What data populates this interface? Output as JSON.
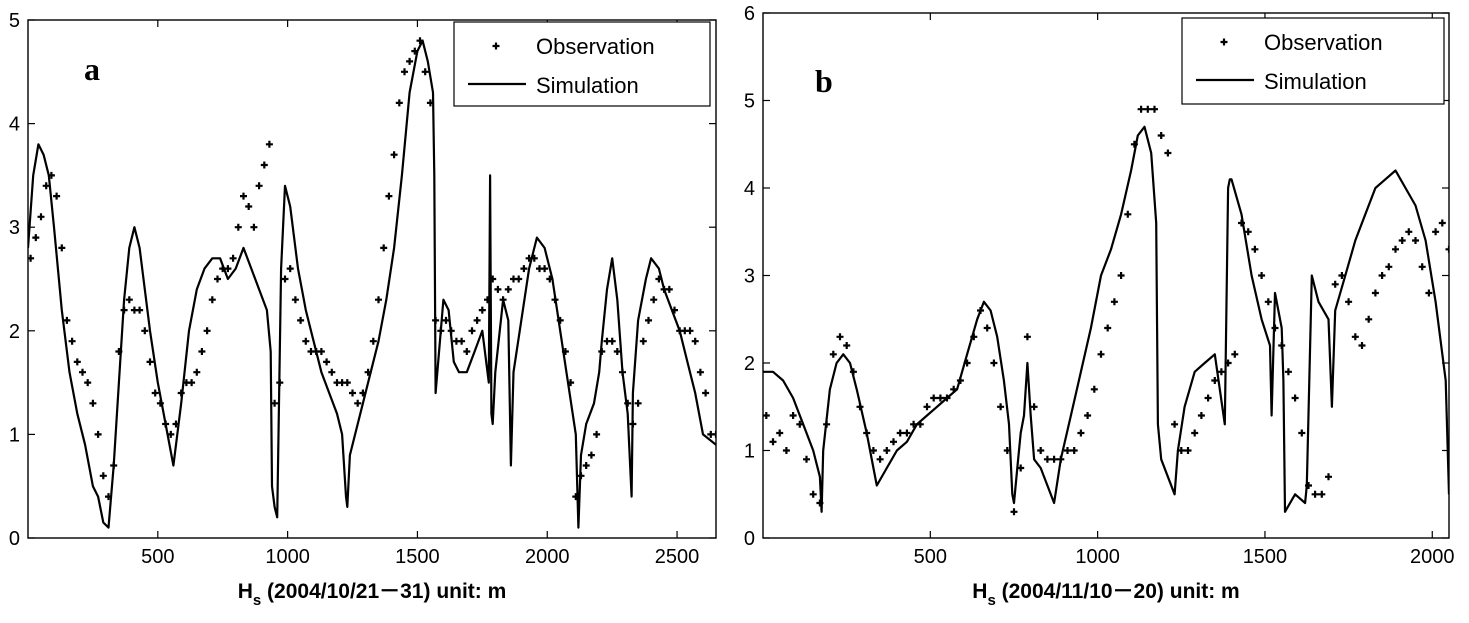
{
  "chart_data": [
    {
      "type": "line",
      "panel_label": "a",
      "xlabel_main": "H",
      "xlabel_sub": "s",
      "xlabel_rest": " (2004/10/21－31) unit: m",
      "xlim": [
        0,
        2650
      ],
      "ylim": [
        0,
        5
      ],
      "x_ticks": [
        "500",
        "1000",
        "1500",
        "2000",
        "2500"
      ],
      "y_ticks": [
        "0",
        "1",
        "2",
        "3",
        "4",
        "5"
      ],
      "legend": {
        "placement": "top-right",
        "entries": [
          "Observation",
          "Simulation"
        ]
      },
      "series": [
        {
          "name": "Observation",
          "style": "points",
          "x": [
            10,
            30,
            50,
            70,
            90,
            110,
            130,
            150,
            170,
            190,
            210,
            230,
            250,
            270,
            290,
            310,
            330,
            350,
            370,
            390,
            410,
            430,
            450,
            470,
            490,
            510,
            530,
            550,
            570,
            590,
            610,
            630,
            650,
            670,
            690,
            710,
            730,
            750,
            770,
            790,
            810,
            830,
            850,
            870,
            890,
            910,
            930,
            950,
            970,
            990,
            1010,
            1030,
            1050,
            1070,
            1090,
            1110,
            1130,
            1150,
            1170,
            1190,
            1210,
            1230,
            1250,
            1270,
            1290,
            1310,
            1330,
            1350,
            1370,
            1390,
            1410,
            1430,
            1450,
            1470,
            1490,
            1510,
            1530,
            1550,
            1570,
            1590,
            1610,
            1630,
            1650,
            1670,
            1690,
            1710,
            1730,
            1750,
            1770,
            1790,
            1810,
            1830,
            1850,
            1870,
            1890,
            1910,
            1930,
            1950,
            1970,
            1990,
            2010,
            2030,
            2050,
            2070,
            2090,
            2110,
            2130,
            2150,
            2170,
            2190,
            2210,
            2230,
            2250,
            2270,
            2290,
            2310,
            2330,
            2350,
            2370,
            2390,
            2410,
            2430,
            2450,
            2470,
            2490,
            2510,
            2530,
            2550,
            2570,
            2590,
            2610,
            2630,
            2650
          ],
          "y": [
            2.7,
            2.9,
            3.1,
            3.4,
            3.5,
            3.3,
            2.8,
            2.1,
            1.9,
            1.7,
            1.6,
            1.5,
            1.3,
            1.0,
            0.6,
            0.4,
            0.7,
            1.8,
            2.2,
            2.3,
            2.2,
            2.2,
            2.0,
            1.7,
            1.4,
            1.3,
            1.1,
            1.0,
            1.1,
            1.4,
            1.5,
            1.5,
            1.6,
            1.8,
            2.0,
            2.3,
            2.5,
            2.6,
            2.6,
            2.7,
            3.0,
            3.3,
            3.2,
            3.0,
            3.4,
            3.6,
            3.8,
            1.3,
            1.5,
            2.5,
            2.6,
            2.3,
            2.1,
            1.9,
            1.8,
            1.8,
            1.8,
            1.7,
            1.6,
            1.5,
            1.5,
            1.5,
            1.4,
            1.3,
            1.4,
            1.6,
            1.9,
            2.3,
            2.8,
            3.3,
            3.7,
            4.2,
            4.5,
            4.6,
            4.7,
            4.8,
            4.5,
            4.2,
            2.1,
            2.0,
            2.1,
            2.0,
            1.9,
            1.9,
            1.8,
            2.0,
            2.1,
            2.2,
            2.3,
            2.5,
            2.4,
            2.3,
            2.4,
            2.5,
            2.5,
            2.6,
            2.7,
            2.7,
            2.6,
            2.6,
            2.5,
            2.3,
            2.1,
            1.8,
            1.5,
            0.4,
            0.6,
            0.7,
            0.8,
            1.0,
            1.8,
            1.9,
            1.9,
            1.8,
            1.6,
            1.3,
            1.1,
            1.3,
            1.9,
            2.1,
            2.3,
            2.5,
            2.4,
            2.4,
            2.2,
            2.0,
            2.0,
            2.0,
            1.9,
            1.6,
            1.4,
            1.0,
            1.0
          ],
          "color": "#000000"
        },
        {
          "name": "Simulation",
          "style": "line",
          "x": [
            0,
            20,
            40,
            60,
            80,
            100,
            130,
            160,
            190,
            220,
            250,
            270,
            290,
            310,
            330,
            350,
            370,
            390,
            410,
            430,
            450,
            470,
            500,
            530,
            560,
            590,
            620,
            650,
            680,
            710,
            740,
            770,
            800,
            830,
            860,
            890,
            920,
            935,
            940,
            950,
            960,
            975,
            990,
            1010,
            1040,
            1070,
            1100,
            1130,
            1160,
            1190,
            1210,
            1225,
            1230,
            1240,
            1260,
            1290,
            1320,
            1350,
            1380,
            1410,
            1440,
            1470,
            1500,
            1520,
            1540,
            1560,
            1565,
            1570,
            1600,
            1620,
            1640,
            1660,
            1690,
            1720,
            1750,
            1775,
            1780,
            1785,
            1790,
            1800,
            1830,
            1850,
            1860,
            1870,
            1900,
            1930,
            1960,
            1990,
            2020,
            2050,
            2080,
            2110,
            2120,
            2130,
            2150,
            2180,
            2200,
            2210,
            2230,
            2250,
            2270,
            2290,
            2310,
            2325,
            2330,
            2350,
            2380,
            2400,
            2430,
            2450,
            2480,
            2510,
            2540,
            2570,
            2600,
            2650
          ],
          "y": [
            2.8,
            3.5,
            3.8,
            3.7,
            3.5,
            3.0,
            2.2,
            1.6,
            1.2,
            0.9,
            0.5,
            0.4,
            0.15,
            0.1,
            0.7,
            1.5,
            2.3,
            2.8,
            3.0,
            2.8,
            2.4,
            2.0,
            1.5,
            1.1,
            0.7,
            1.3,
            2.0,
            2.4,
            2.6,
            2.7,
            2.7,
            2.5,
            2.6,
            2.8,
            2.6,
            2.4,
            2.2,
            1.8,
            0.5,
            0.3,
            0.2,
            2.6,
            3.4,
            3.2,
            2.6,
            2.2,
            1.9,
            1.6,
            1.4,
            1.2,
            1.0,
            0.4,
            0.3,
            0.8,
            1.0,
            1.3,
            1.6,
            1.9,
            2.3,
            2.8,
            3.5,
            4.3,
            4.7,
            4.8,
            4.6,
            4.3,
            3.5,
            1.4,
            2.3,
            2.2,
            1.7,
            1.6,
            1.6,
            1.8,
            2.0,
            1.5,
            3.5,
            1.2,
            1.1,
            1.6,
            2.3,
            2.1,
            0.7,
            1.6,
            2.1,
            2.6,
            2.9,
            2.8,
            2.5,
            2.0,
            1.5,
            1.0,
            0.1,
            0.8,
            1.1,
            1.3,
            1.6,
            1.9,
            2.4,
            2.7,
            2.3,
            1.6,
            1.2,
            0.4,
            1.4,
            2.1,
            2.5,
            2.7,
            2.6,
            2.4,
            2.2,
            2.0,
            1.7,
            1.4,
            1.0,
            0.9
          ],
          "color": "#000000"
        }
      ]
    },
    {
      "type": "line",
      "panel_label": "b",
      "xlabel_main": "H",
      "xlabel_sub": "s",
      "xlabel_rest": " (2004/11/10－20) unit: m",
      "xlim": [
        0,
        2050
      ],
      "ylim": [
        0,
        6
      ],
      "x_ticks": [
        "500",
        "1000",
        "1500",
        "2000"
      ],
      "y_ticks": [
        "0",
        "1",
        "2",
        "3",
        "4",
        "5",
        "6"
      ],
      "legend": {
        "placement": "top-right",
        "entries": [
          "Observation",
          "Simulation"
        ]
      },
      "series": [
        {
          "name": "Observation",
          "style": "points",
          "x": [
            10,
            30,
            50,
            70,
            90,
            110,
            130,
            150,
            170,
            190,
            210,
            230,
            250,
            270,
            290,
            310,
            330,
            350,
            370,
            390,
            410,
            430,
            450,
            470,
            490,
            510,
            530,
            550,
            570,
            590,
            610,
            630,
            650,
            670,
            690,
            710,
            730,
            750,
            770,
            790,
            810,
            830,
            850,
            870,
            890,
            910,
            930,
            950,
            970,
            990,
            1010,
            1030,
            1050,
            1070,
            1090,
            1110,
            1130,
            1150,
            1170,
            1190,
            1210,
            1230,
            1250,
            1270,
            1290,
            1310,
            1330,
            1350,
            1370,
            1390,
            1410,
            1430,
            1450,
            1470,
            1490,
            1510,
            1530,
            1550,
            1570,
            1590,
            1610,
            1630,
            1650,
            1670,
            1690,
            1710,
            1730,
            1750,
            1770,
            1790,
            1810,
            1830,
            1850,
            1870,
            1890,
            1910,
            1930,
            1950,
            1970,
            1990,
            2010,
            2030,
            2050
          ],
          "y": [
            1.4,
            1.1,
            1.2,
            1.0,
            1.4,
            1.3,
            0.9,
            0.5,
            0.4,
            1.3,
            2.1,
            2.3,
            2.2,
            1.9,
            1.5,
            1.2,
            1.0,
            0.9,
            1.0,
            1.1,
            1.2,
            1.2,
            1.3,
            1.3,
            1.5,
            1.6,
            1.6,
            1.6,
            1.7,
            1.8,
            2.0,
            2.3,
            2.6,
            2.4,
            2.0,
            1.5,
            1.0,
            0.3,
            0.8,
            2.3,
            1.5,
            1.0,
            0.9,
            0.9,
            0.9,
            1.0,
            1.0,
            1.2,
            1.4,
            1.7,
            2.1,
            2.4,
            2.7,
            3.0,
            3.7,
            4.5,
            4.9,
            4.9,
            4.9,
            4.6,
            4.4,
            1.3,
            1.0,
            1.0,
            1.2,
            1.4,
            1.6,
            1.8,
            1.9,
            2.0,
            2.1,
            3.6,
            3.5,
            3.3,
            3.0,
            2.7,
            2.4,
            2.2,
            1.9,
            1.6,
            1.2,
            0.6,
            0.5,
            0.5,
            0.7,
            2.9,
            3.0,
            2.7,
            2.3,
            2.2,
            2.5,
            2.8,
            3.0,
            3.1,
            3.3,
            3.4,
            3.5,
            3.4,
            3.1,
            2.8,
            3.5,
            3.6,
            3.3
          ],
          "color": "#000000"
        },
        {
          "name": "Simulation",
          "style": "line",
          "x": [
            0,
            30,
            60,
            90,
            120,
            150,
            170,
            175,
            180,
            200,
            220,
            240,
            260,
            280,
            310,
            340,
            370,
            400,
            430,
            460,
            490,
            520,
            550,
            580,
            610,
            640,
            660,
            680,
            700,
            720,
            735,
            745,
            750,
            760,
            770,
            780,
            790,
            800,
            810,
            830,
            850,
            870,
            890,
            920,
            950,
            980,
            1010,
            1040,
            1070,
            1100,
            1120,
            1140,
            1160,
            1175,
            1180,
            1190,
            1210,
            1230,
            1240,
            1260,
            1290,
            1320,
            1350,
            1380,
            1390,
            1395,
            1400,
            1430,
            1460,
            1490,
            1515,
            1520,
            1530,
            1550,
            1555,
            1560,
            1590,
            1620,
            1625,
            1640,
            1660,
            1690,
            1700,
            1710,
            1740,
            1770,
            1800,
            1830,
            1860,
            1890,
            1920,
            1950,
            1980,
            2010,
            2040,
            2050
          ],
          "y": [
            1.9,
            1.9,
            1.8,
            1.6,
            1.3,
            1.0,
            0.7,
            0.3,
            1.0,
            1.7,
            2.0,
            2.1,
            2.0,
            1.7,
            1.2,
            0.6,
            0.8,
            1.0,
            1.1,
            1.3,
            1.4,
            1.5,
            1.6,
            1.7,
            2.1,
            2.5,
            2.7,
            2.6,
            2.3,
            1.8,
            1.3,
            0.5,
            0.4,
            0.8,
            1.2,
            1.4,
            2.0,
            1.4,
            0.9,
            0.8,
            0.6,
            0.4,
            0.9,
            1.4,
            1.9,
            2.4,
            3.0,
            3.3,
            3.7,
            4.2,
            4.6,
            4.7,
            4.4,
            3.6,
            1.3,
            0.9,
            0.7,
            0.5,
            1.0,
            1.5,
            1.9,
            2.0,
            2.1,
            1.3,
            4.0,
            4.1,
            4.1,
            3.7,
            3.0,
            2.5,
            2.2,
            1.4,
            2.8,
            2.4,
            1.8,
            0.3,
            0.5,
            0.4,
            0.6,
            3.0,
            2.7,
            2.5,
            1.5,
            2.6,
            3.0,
            3.4,
            3.7,
            4.0,
            4.1,
            4.2,
            4.0,
            3.8,
            3.4,
            2.7,
            1.8,
            0.5
          ],
          "color": "#000000"
        }
      ]
    }
  ]
}
